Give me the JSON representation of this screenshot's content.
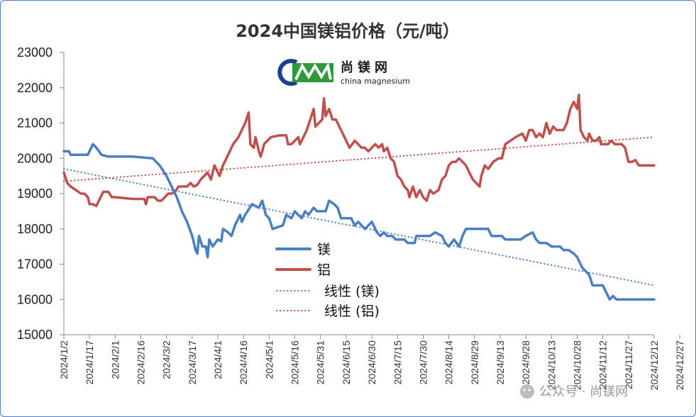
{
  "chart_data": {
    "type": "line",
    "title": "2024中国镁铝价格（元/吨）",
    "ylim": [
      15000,
      23000
    ],
    "yticks": [
      "15000",
      "16000",
      "17000",
      "18000",
      "19000",
      "20000",
      "21000",
      "22000",
      "23000"
    ],
    "categories": [
      "2024/1/2",
      "2024/1/17",
      "2024/2/1",
      "2024/2/16",
      "2024/3/2",
      "2024/3/17",
      "2024/4/1",
      "2024/4/16",
      "2024/5/1",
      "2024/5/16",
      "2024/5/31",
      "2024/6/15",
      "2024/6/30",
      "2024/7/15",
      "2024/7/30",
      "2024/8/14",
      "2024/8/29",
      "2024/9/13",
      "2024/9/28",
      "2024/10/13",
      "2024/10/28",
      "2024/11/12",
      "2024/11/27",
      "2024/12/12",
      "2024/12/27"
    ],
    "series": [
      {
        "name": "镁",
        "color": "#4a7fc1",
        "points": [
          [
            0,
            20200
          ],
          [
            3,
            20200
          ],
          [
            4,
            20100
          ],
          [
            14,
            20100
          ],
          [
            15,
            20200
          ],
          [
            17,
            20400
          ],
          [
            19,
            20300
          ],
          [
            22,
            20100
          ],
          [
            26,
            20050
          ],
          [
            40,
            20050
          ],
          [
            52,
            20000
          ],
          [
            56,
            19800
          ],
          [
            60,
            19500
          ],
          [
            63,
            19200
          ],
          [
            66,
            18900
          ],
          [
            69,
            18500
          ],
          [
            72,
            18200
          ],
          [
            75,
            17800
          ],
          [
            77,
            17400
          ],
          [
            78,
            17300
          ],
          [
            79,
            17800
          ],
          [
            81,
            17500
          ],
          [
            83,
            17500
          ],
          [
            84,
            17200
          ],
          [
            85,
            17700
          ],
          [
            87,
            17500
          ],
          [
            90,
            17700
          ],
          [
            92,
            17650
          ],
          [
            93,
            18000
          ],
          [
            96,
            17900
          ],
          [
            98,
            17800
          ],
          [
            100,
            18100
          ],
          [
            103,
            18400
          ],
          [
            104,
            18200
          ],
          [
            106,
            18400
          ],
          [
            110,
            18700
          ],
          [
            114,
            18600
          ],
          [
            116,
            18800
          ],
          [
            118,
            18400
          ],
          [
            120,
            18300
          ],
          [
            122,
            18000
          ],
          [
            128,
            18100
          ],
          [
            130,
            18400
          ],
          [
            133,
            18300
          ],
          [
            135,
            18500
          ],
          [
            137,
            18400
          ],
          [
            139,
            18300
          ],
          [
            141,
            18500
          ],
          [
            143,
            18400
          ],
          [
            146,
            18600
          ],
          [
            148,
            18500
          ],
          [
            153,
            18500
          ],
          [
            155,
            18800
          ],
          [
            158,
            18700
          ],
          [
            160,
            18600
          ],
          [
            162,
            18300
          ],
          [
            168,
            18300
          ],
          [
            170,
            18100
          ],
          [
            172,
            18200
          ],
          [
            174,
            18100
          ],
          [
            176,
            18000
          ],
          [
            178,
            18100
          ],
          [
            180,
            18200
          ],
          [
            183,
            17900
          ],
          [
            185,
            17800
          ],
          [
            187,
            17900
          ],
          [
            189,
            17800
          ],
          [
            192,
            17800
          ],
          [
            194,
            17700
          ],
          [
            199,
            17700
          ],
          [
            201,
            17600
          ],
          [
            205,
            17600
          ],
          [
            206,
            17800
          ],
          [
            210,
            17800
          ],
          [
            214,
            17800
          ],
          [
            217,
            17900
          ],
          [
            221,
            17800
          ],
          [
            223,
            17600
          ],
          [
            225,
            17500
          ],
          [
            228,
            17700
          ],
          [
            231,
            17500
          ],
          [
            233,
            17800
          ],
          [
            235,
            18000
          ],
          [
            248,
            18000
          ],
          [
            250,
            17800
          ],
          [
            256,
            17800
          ],
          [
            258,
            17700
          ],
          [
            267,
            17700
          ],
          [
            270,
            17800
          ],
          [
            274,
            17900
          ],
          [
            276,
            17700
          ],
          [
            278,
            17600
          ],
          [
            282,
            17600
          ],
          [
            285,
            17500
          ],
          [
            290,
            17500
          ],
          [
            292,
            17400
          ],
          [
            295,
            17400
          ],
          [
            298,
            17300
          ],
          [
            300,
            17200
          ],
          [
            303,
            16900
          ],
          [
            305,
            16800
          ],
          [
            307,
            16700
          ],
          [
            309,
            16400
          ],
          [
            315,
            16400
          ],
          [
            317,
            16200
          ],
          [
            319,
            16000
          ],
          [
            321,
            16100
          ],
          [
            323,
            16000
          ],
          [
            330,
            16000
          ],
          [
            345,
            16000
          ]
        ]
      },
      {
        "name": "铝",
        "color": "#c0504d",
        "points": [
          [
            0,
            19600
          ],
          [
            2,
            19300
          ],
          [
            4,
            19200
          ],
          [
            7,
            19100
          ],
          [
            10,
            19000
          ],
          [
            12,
            19000
          ],
          [
            14,
            18900
          ],
          [
            15,
            18700
          ],
          [
            17,
            18700
          ],
          [
            19,
            18650
          ],
          [
            21,
            18850
          ],
          [
            23,
            19050
          ],
          [
            26,
            19050
          ],
          [
            28,
            18900
          ],
          [
            30,
            18900
          ],
          [
            40,
            18850
          ],
          [
            47,
            18850
          ],
          [
            48,
            18700
          ],
          [
            49,
            18900
          ],
          [
            53,
            18900
          ],
          [
            55,
            18800
          ],
          [
            57,
            18800
          ],
          [
            59,
            18900
          ],
          [
            61,
            19000
          ],
          [
            63,
            19000
          ],
          [
            65,
            19050
          ],
          [
            67,
            19200
          ],
          [
            69,
            19200
          ],
          [
            72,
            19200
          ],
          [
            74,
            19300
          ],
          [
            76,
            19200
          ],
          [
            78,
            19250
          ],
          [
            80,
            19400
          ],
          [
            82,
            19500
          ],
          [
            84,
            19600
          ],
          [
            86,
            19400
          ],
          [
            88,
            19800
          ],
          [
            91,
            19500
          ],
          [
            93,
            19800
          ],
          [
            95,
            20000
          ],
          [
            97,
            20200
          ],
          [
            99,
            20400
          ],
          [
            102,
            20600
          ],
          [
            104,
            20800
          ],
          [
            106,
            21000
          ],
          [
            108,
            21300
          ],
          [
            109,
            20400
          ],
          [
            111,
            20300
          ],
          [
            112,
            20600
          ],
          [
            114,
            20200
          ],
          [
            115,
            20050
          ],
          [
            116,
            20200
          ],
          [
            117,
            20400
          ],
          [
            119,
            20500
          ],
          [
            121,
            20600
          ],
          [
            126,
            20650
          ],
          [
            130,
            20650
          ],
          [
            131,
            20400
          ],
          [
            133,
            20400
          ],
          [
            135,
            20500
          ],
          [
            137,
            20600
          ],
          [
            138,
            20400
          ],
          [
            140,
            20600
          ],
          [
            142,
            20800
          ],
          [
            144,
            21100
          ],
          [
            146,
            21400
          ],
          [
            147,
            20900
          ],
          [
            149,
            21000
          ],
          [
            151,
            21100
          ],
          [
            152,
            21700
          ],
          [
            153,
            21200
          ],
          [
            155,
            21400
          ],
          [
            157,
            21100
          ],
          [
            159,
            21100
          ],
          [
            161,
            20900
          ],
          [
            163,
            20700
          ],
          [
            165,
            20500
          ],
          [
            167,
            20300
          ],
          [
            170,
            20500
          ],
          [
            172,
            20400
          ],
          [
            174,
            20300
          ],
          [
            176,
            20300
          ],
          [
            178,
            20200
          ],
          [
            180,
            20300
          ],
          [
            182,
            20400
          ],
          [
            184,
            20300
          ],
          [
            186,
            20400
          ],
          [
            187,
            20200
          ],
          [
            189,
            20300
          ],
          [
            191,
            20000
          ],
          [
            193,
            19900
          ],
          [
            195,
            19500
          ],
          [
            197,
            19400
          ],
          [
            199,
            19200
          ],
          [
            201,
            19100
          ],
          [
            202,
            18900
          ],
          [
            204,
            19200
          ],
          [
            206,
            18900
          ],
          [
            208,
            19100
          ],
          [
            210,
            18900
          ],
          [
            212,
            18800
          ],
          [
            214,
            19100
          ],
          [
            216,
            19000
          ],
          [
            219,
            19100
          ],
          [
            221,
            19400
          ],
          [
            223,
            19500
          ],
          [
            225,
            19800
          ],
          [
            227,
            19900
          ],
          [
            229,
            19900
          ],
          [
            231,
            20000
          ],
          [
            233,
            19900
          ],
          [
            235,
            19800
          ],
          [
            237,
            19600
          ],
          [
            239,
            19400
          ],
          [
            241,
            19300
          ],
          [
            243,
            19200
          ],
          [
            244,
            19500
          ],
          [
            246,
            19800
          ],
          [
            248,
            19700
          ],
          [
            251,
            19900
          ],
          [
            254,
            20000
          ],
          [
            256,
            20000
          ],
          [
            258,
            20400
          ],
          [
            261,
            20500
          ],
          [
            264,
            20600
          ],
          [
            268,
            20700
          ],
          [
            270,
            20500
          ],
          [
            272,
            20800
          ],
          [
            274,
            20800
          ],
          [
            276,
            20600
          ],
          [
            278,
            20700
          ],
          [
            280,
            20600
          ],
          [
            282,
            21000
          ],
          [
            284,
            20700
          ],
          [
            286,
            20900
          ],
          [
            288,
            20800
          ],
          [
            290,
            20800
          ],
          [
            292,
            20800
          ],
          [
            294,
            21000
          ],
          [
            296,
            21400
          ],
          [
            298,
            21600
          ],
          [
            300,
            21400
          ],
          [
            301,
            21800
          ],
          [
            302,
            20800
          ],
          [
            304,
            20600
          ],
          [
            306,
            20500
          ],
          [
            307,
            20700
          ],
          [
            308,
            20600
          ],
          [
            309,
            20500
          ],
          [
            311,
            20500
          ],
          [
            313,
            20600
          ],
          [
            314,
            20400
          ],
          [
            316,
            20400
          ],
          [
            318,
            20400
          ],
          [
            320,
            20500
          ],
          [
            322,
            20400
          ],
          [
            324,
            20400
          ],
          [
            326,
            20400
          ],
          [
            328,
            20300
          ],
          [
            330,
            19900
          ],
          [
            332,
            19900
          ],
          [
            334,
            19950
          ],
          [
            336,
            19800
          ],
          [
            338,
            19800
          ],
          [
            345,
            19800
          ]
        ]
      },
      {
        "name": "线性 (镁)",
        "color": "#4a7fc1",
        "style": "dotted",
        "points": [
          [
            0,
            19700
          ],
          [
            345,
            16400
          ]
        ]
      },
      {
        "name": "线性 (铝)",
        "color": "#c0504d",
        "style": "dotted",
        "points": [
          [
            0,
            19350
          ],
          [
            345,
            20600
          ]
        ]
      }
    ],
    "legend_position": "center",
    "grid": false
  },
  "logo": {
    "name_cn": "尚镁网",
    "name_en": "china magnesium",
    "colors": {
      "blue": "#1f3f8f",
      "green": "#2f9a3a"
    }
  },
  "watermark": {
    "text": "公众号 · 尚镁网"
  }
}
